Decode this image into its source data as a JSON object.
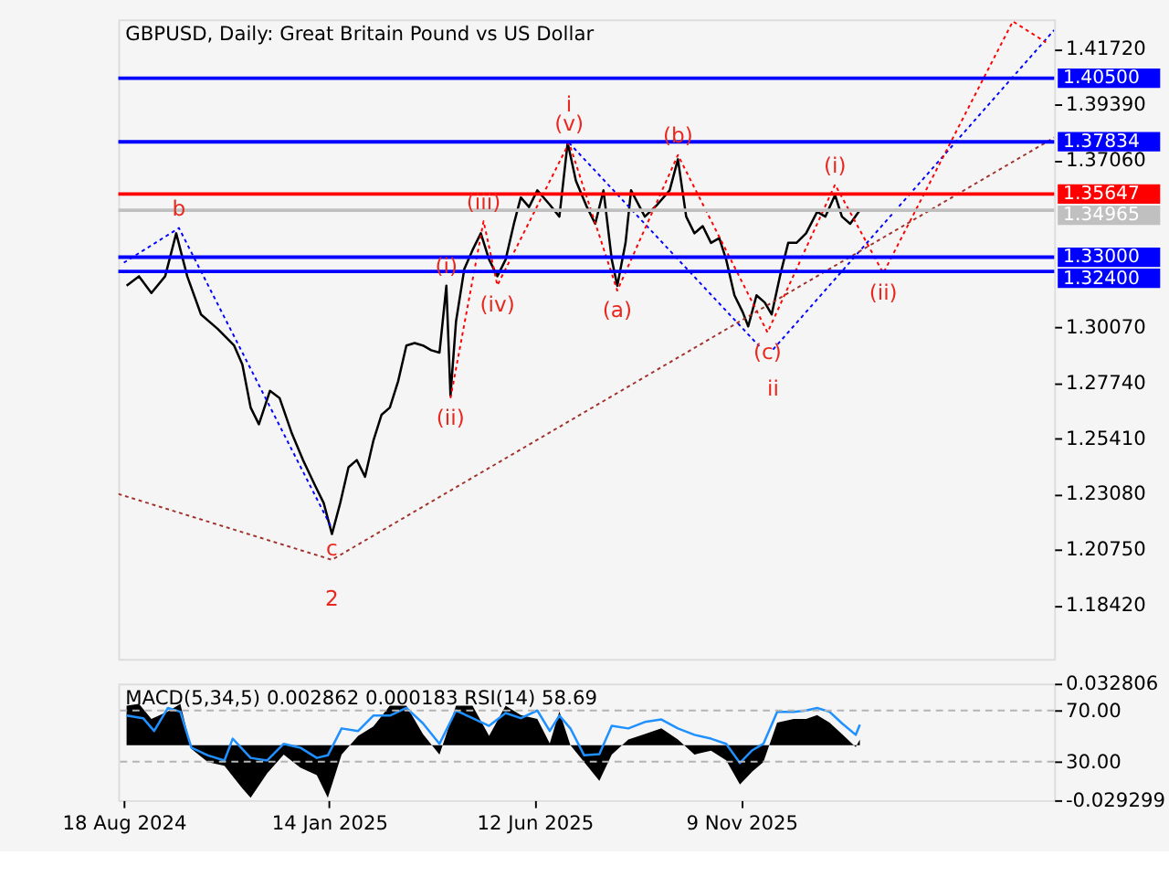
{
  "chart_data": [
    {
      "type": "line",
      "title": "GBPUSD, Daily:  Great Britain Pound vs US Dollar",
      "tick_labels": "y",
      "xlim": [
        "2024-08-14",
        "2026-06-24"
      ],
      "ylim": [
        1.1617,
        1.4296
      ],
      "yticks": [
        {
          "value": 1.1842,
          "label": "1.18420"
        },
        {
          "value": 1.2075,
          "label": "1.20750"
        },
        {
          "value": 1.2308,
          "label": "1.23080"
        },
        {
          "value": 1.2541,
          "label": "1.25410"
        },
        {
          "value": 1.2774,
          "label": "1.27740"
        },
        {
          "value": 1.3007,
          "label": "1.30070"
        },
        {
          "value": 1.3706,
          "label": "1.37060"
        },
        {
          "value": 1.3939,
          "label": "1.39390"
        },
        {
          "value": 1.4172,
          "label": "1.41720"
        }
      ],
      "series": [
        {
          "color": "#000000",
          "x": [
            "2024-08-20",
            "2024-08-29",
            "2024-09-07",
            "2024-09-17",
            "2024-09-25",
            "2024-10-03",
            "2024-10-13",
            "2024-10-25",
            "2024-11-06",
            "2024-11-12",
            "2024-11-18",
            "2024-11-24",
            "2024-12-02",
            "2024-12-09",
            "2024-12-18",
            "2024-12-26",
            "2025-01-04",
            "2025-01-10",
            "2025-01-16",
            "2025-01-22",
            "2025-01-28",
            "2025-02-03",
            "2025-02-09",
            "2025-02-15",
            "2025-02-21",
            "2025-02-27",
            "2025-03-05",
            "2025-03-11",
            "2025-03-17",
            "2025-03-23",
            "2025-03-29",
            "2025-04-04",
            "2025-04-09",
            "2025-04-12",
            "2025-04-16",
            "2025-04-22",
            "2025-04-28",
            "2025-05-04",
            "2025-05-10",
            "2025-05-16",
            "2025-05-22",
            "2025-05-28",
            "2025-06-02",
            "2025-06-08",
            "2025-06-14",
            "2025-06-23",
            "2025-06-30",
            "2025-07-06",
            "2025-07-12",
            "2025-07-20",
            "2025-07-26",
            "2025-08-01",
            "2025-08-07",
            "2025-08-11",
            "2025-08-17",
            "2025-08-21",
            "2025-08-31",
            "2025-09-09",
            "2025-09-18",
            "2025-09-24",
            "2025-09-30",
            "2025-10-06",
            "2025-10-12",
            "2025-10-18",
            "2025-10-24",
            "2025-10-29",
            "2025-11-04",
            "2025-11-10",
            "2025-11-14",
            "2025-11-20",
            "2025-11-26",
            "2025-12-01",
            "2025-12-07",
            "2025-12-13",
            "2025-12-19",
            "2025-12-26",
            "2026-01-03",
            "2026-01-09",
            "2026-01-16",
            "2026-01-21",
            "2026-01-27",
            "2026-02-03"
          ],
          "values": [
            1.318,
            1.322,
            1.315,
            1.322,
            1.34,
            1.322,
            1.306,
            1.3,
            1.293,
            1.285,
            1.267,
            1.26,
            1.274,
            1.271,
            1.256,
            1.245,
            1.234,
            1.227,
            1.214,
            1.227,
            1.242,
            1.245,
            1.238,
            1.253,
            1.264,
            1.267,
            1.278,
            1.293,
            1.294,
            1.293,
            1.291,
            1.29,
            1.318,
            1.272,
            1.303,
            1.325,
            1.333,
            1.34,
            1.329,
            1.322,
            1.329,
            1.344,
            1.355,
            1.351,
            1.358,
            1.352,
            1.347,
            1.378,
            1.362,
            1.351,
            1.344,
            1.358,
            1.329,
            1.318,
            1.336,
            1.358,
            1.347,
            1.352,
            1.358,
            1.371,
            1.347,
            1.34,
            1.343,
            1.336,
            1.338,
            1.329,
            1.314,
            1.307,
            1.301,
            1.314,
            1.311,
            1.306,
            1.322,
            1.336,
            1.336,
            1.34,
            1.349,
            1.347,
            1.356,
            1.347,
            1.344,
            1.3497
          ]
        },
        {
          "type": "line",
          "line_style": "dotted",
          "color": "#0000ff",
          "x": [
            "2024-08-18",
            "2024-09-27",
            "2025-01-16"
          ],
          "values": [
            1.3277,
            1.3422,
            1.2163
          ]
        },
        {
          "type": "line",
          "line_style": "dotted",
          "color": "#0000ff",
          "x": [
            "2025-07-07",
            "2025-11-22"
          ],
          "values": [
            1.3779,
            1.2927
          ]
        },
        {
          "type": "line",
          "line_style": "dotted",
          "color": "#0000ff",
          "x": [
            "2025-12-02",
            "2026-06-24"
          ],
          "values": [
            1.2913,
            1.4252
          ]
        },
        {
          "type": "line",
          "line_style": "dotted",
          "color": "#ff0000",
          "x": [
            "2025-04-12",
            "2025-05-06",
            "2025-05-16",
            "2025-07-07",
            "2025-08-11",
            "2025-09-24",
            "2025-11-28",
            "2026-01-16",
            "2026-02-20",
            "2026-05-25",
            "2026-06-18"
          ],
          "values": [
            1.2709,
            1.3451,
            1.3182,
            1.3779,
            1.316,
            1.3728,
            1.2985,
            1.3604,
            1.3233,
            1.4288,
            1.42
          ]
        },
        {
          "type": "line",
          "line_style": "dotted",
          "color": "#a0302a",
          "x": [
            "2024-08-14",
            "2025-01-16",
            "2026-06-24"
          ],
          "values": [
            1.2308,
            1.2032,
            1.3801
          ]
        }
      ],
      "ref_lines": [
        {
          "axis": "y",
          "value": 1.405,
          "label": "1.40500",
          "color": "#0000ff"
        },
        {
          "axis": "y",
          "value": 1.37834,
          "label": "1.37834",
          "color": "#0000ff"
        },
        {
          "axis": "y",
          "value": 1.35647,
          "label": "1.35647",
          "color": "#ff0000"
        },
        {
          "axis": "y",
          "value": 1.34965,
          "label": "1.34965",
          "color": "#c0c0c0"
        },
        {
          "axis": "y",
          "value": 1.33,
          "label": "1.33000",
          "color": "#0000ff"
        },
        {
          "axis": "y",
          "value": 1.324,
          "label": "1.32400",
          "color": "#0000ff"
        }
      ],
      "annotations": [
        {
          "text": "b",
          "x": "2024-09-27",
          "y": 1.3422
        },
        {
          "text": "c",
          "x": "2025-01-16",
          "y": 1.2163
        },
        {
          "text": "2",
          "x": "2025-01-16",
          "y": 1.2032
        },
        {
          "text": "(v)",
          "x": "2025-07-07",
          "y": 1.3779
        },
        {
          "text": "i",
          "x": "2025-07-07",
          "y": 1.3779
        },
        {
          "text": "(c)",
          "x": "2025-11-28",
          "y": 1.2985
        },
        {
          "text": "ii",
          "x": "2025-12-02",
          "y": 1.2913
        },
        {
          "text": "(i)",
          "x": "2025-04-09",
          "y": 1.318
        },
        {
          "text": "(ii)",
          "x": "2025-04-12",
          "y": 1.2709
        },
        {
          "text": "(iii)",
          "x": "2025-05-06",
          "y": 1.3451
        },
        {
          "text": "(iv)",
          "x": "2025-05-16",
          "y": 1.3182
        },
        {
          "text": "(a)",
          "x": "2025-08-11",
          "y": 1.316
        },
        {
          "text": "(b)",
          "x": "2025-09-24",
          "y": 1.3728
        },
        {
          "text": "(i)",
          "x": "2026-01-16",
          "y": 1.3604
        },
        {
          "text": "(ii)",
          "x": "2026-02-20",
          "y": 1.3233
        }
      ]
    },
    {
      "type": "line",
      "title": "MACD(5,34,5) 0.002862 0.000183 RSI(14) 58.69",
      "xlim": [
        "2024-08-14",
        "2026-06-24"
      ],
      "xticks": [
        {
          "value": "2024-08-18",
          "label": "18 Aug 2024"
        },
        {
          "value": "2025-01-14",
          "label": "14 Jan 2025"
        },
        {
          "value": "2025-06-12",
          "label": "12 Jun 2025"
        },
        {
          "value": "2025-11-09",
          "label": "9 Nov 2025"
        }
      ],
      "ylim": [
        0,
        91
      ],
      "yticks": [
        {
          "value": 70,
          "label": "70.00"
        },
        {
          "value": 30,
          "label": "30.00"
        }
      ],
      "y2lim": [
        -0.029299,
        0.032806
      ],
      "y2ticks": [
        0.032806,
        -0.029299
      ],
      "ref_lines": [
        {
          "axis": "y",
          "value": 70,
          "color": "#b4b4b4",
          "line_style": "dashed"
        },
        {
          "axis": "y",
          "value": 30,
          "color": "#b4b4b4",
          "line_style": "dashed"
        }
      ],
      "series": [
        {
          "type": "area",
          "axis": "y2",
          "color": "#000000",
          "x": [
            "2024-08-20",
            "2024-08-29",
            "2024-09-07",
            "2024-09-19",
            "2024-09-28",
            "2024-10-06",
            "2024-10-18",
            "2024-10-30",
            "2024-11-12",
            "2024-11-18",
            "2024-11-30",
            "2024-12-12",
            "2024-12-24",
            "2025-01-05",
            "2025-01-13",
            "2025-01-23",
            "2025-02-04",
            "2025-02-15",
            "2025-02-27",
            "2025-03-11",
            "2025-03-23",
            "2025-04-04",
            "2025-04-16",
            "2025-04-28",
            "2025-05-10",
            "2025-05-22",
            "2025-06-02",
            "2025-06-14",
            "2025-06-23",
            "2025-06-30",
            "2025-07-08",
            "2025-07-18",
            "2025-07-29",
            "2025-08-07",
            "2025-08-19",
            "2025-08-31",
            "2025-09-12",
            "2025-09-24",
            "2025-10-06",
            "2025-10-18",
            "2025-10-29",
            "2025-11-08",
            "2025-11-17",
            "2025-11-25",
            "2025-12-05",
            "2025-12-17",
            "2025-12-26",
            "2026-01-03",
            "2026-01-12",
            "2026-01-21",
            "2026-01-31",
            "2026-02-03"
          ],
          "values": [
            0.021,
            0.022,
            0.014,
            0.018,
            0.022,
            -0.002,
            -0.009,
            -0.011,
            -0.023,
            -0.028,
            -0.015,
            -0.005,
            -0.012,
            -0.016,
            -0.028,
            -0.005,
            0.005,
            0.01,
            0.021,
            0.021,
            0.006,
            -0.005,
            0.021,
            0.021,
            0.005,
            0.021,
            0.016,
            0.014,
            0.001,
            0.018,
            0.0,
            -0.009,
            -0.019,
            -0.005,
            0.003,
            0.006,
            0.009,
            0.003,
            -0.005,
            -0.003,
            -0.008,
            -0.021,
            -0.014,
            -0.009,
            0.012,
            0.014,
            0.014,
            0.016,
            0.012,
            0.006,
            -0.001,
            0.003
          ]
        },
        {
          "color": "#1e90ff",
          "x": [
            "2024-08-20",
            "2024-09-01",
            "2024-09-09",
            "2024-09-19",
            "2024-09-28",
            "2024-10-06",
            "2024-10-18",
            "2024-10-30",
            "2024-11-05",
            "2024-11-18",
            "2024-11-30",
            "2024-12-12",
            "2024-12-24",
            "2025-01-05",
            "2025-01-13",
            "2025-01-23",
            "2025-02-04",
            "2025-02-15",
            "2025-02-27",
            "2025-03-11",
            "2025-03-23",
            "2025-04-04",
            "2025-04-16",
            "2025-04-28",
            "2025-05-10",
            "2025-05-22",
            "2025-06-02",
            "2025-06-14",
            "2025-06-23",
            "2025-06-30",
            "2025-07-08",
            "2025-07-18",
            "2025-07-29",
            "2025-08-07",
            "2025-08-19",
            "2025-08-31",
            "2025-09-12",
            "2025-09-24",
            "2025-10-06",
            "2025-10-18",
            "2025-10-29",
            "2025-11-08",
            "2025-11-17",
            "2025-11-25",
            "2025-12-05",
            "2025-12-17",
            "2025-12-26",
            "2026-01-03",
            "2026-01-12",
            "2026-01-21",
            "2026-01-31",
            "2026-02-03"
          ],
          "values": [
            66,
            64,
            54,
            72,
            69,
            41,
            35,
            31,
            48,
            33,
            31,
            44,
            41,
            33,
            35,
            56,
            54,
            66,
            66,
            72,
            60,
            44,
            70,
            64,
            58,
            68,
            64,
            70,
            54,
            66,
            56,
            35,
            36,
            58,
            56,
            61,
            63,
            56,
            51,
            48,
            44,
            29,
            39,
            44,
            69,
            69,
            70,
            72,
            69,
            60,
            51,
            59
          ]
        }
      ]
    }
  ]
}
